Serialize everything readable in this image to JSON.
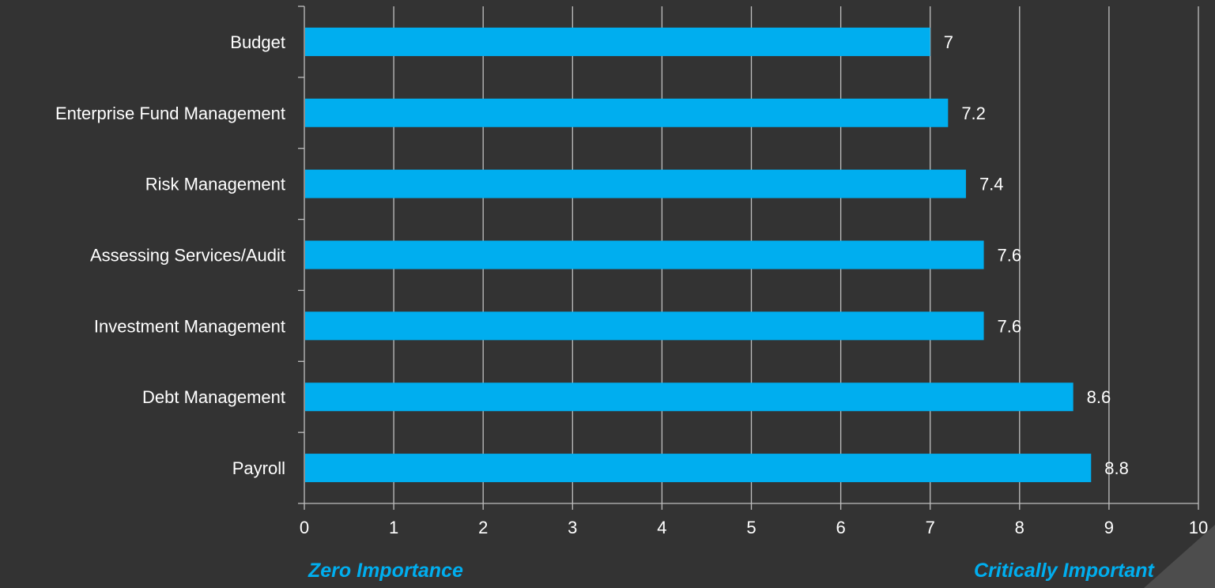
{
  "chart_data": {
    "type": "bar",
    "orientation": "horizontal",
    "categories": [
      "Budget",
      "Enterprise Fund Management",
      "Risk Management",
      "Assessing Services/Audit",
      "Investment Management",
      "Debt Management",
      "Payroll"
    ],
    "values": [
      7,
      7.2,
      7.4,
      7.6,
      7.6,
      8.6,
      8.8
    ],
    "data_labels": [
      "7",
      "7.2",
      "7.4",
      "7.6",
      "7.6",
      "8.6",
      "8.8"
    ],
    "xlim": [
      0,
      10
    ],
    "x_ticks": [
      "0",
      "1",
      "2",
      "3",
      "4",
      "5",
      "6",
      "7",
      "8",
      "9",
      "10"
    ],
    "grid": true,
    "bar_color": "#00aeef",
    "grid_color": "#bfbfbf"
  },
  "footer": {
    "left_label": "Zero Importance",
    "right_label": "Critically Important"
  },
  "colors": {
    "background": "#333333",
    "accent": "#00aeef",
    "corner": "#4d4d4d"
  }
}
